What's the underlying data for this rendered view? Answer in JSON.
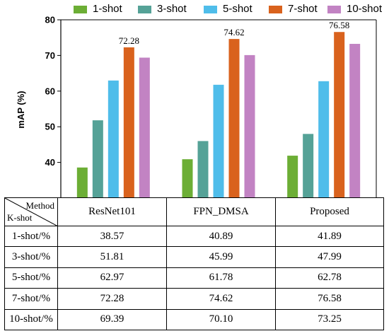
{
  "legend": [
    {
      "name": "1-shot",
      "color": "#6cae35"
    },
    {
      "name": "3-shot",
      "color": "#55a297"
    },
    {
      "name": "5-shot",
      "color": "#4fbdea"
    },
    {
      "name": "7-shot",
      "color": "#d9621d"
    },
    {
      "name": "10-shot",
      "color": "#c283c3"
    }
  ],
  "chart_data": {
    "type": "bar",
    "ylabel": "mAP (%)",
    "ylim": [
      30,
      80
    ],
    "yticks": [
      40,
      50,
      60,
      70,
      80
    ],
    "categories": [
      "ResNet101",
      "FPN_DMSA",
      "Proposed"
    ],
    "series": [
      {
        "name": "1-shot",
        "color": "#6cae35",
        "values": [
          38.57,
          40.89,
          41.89
        ]
      },
      {
        "name": "3-shot",
        "color": "#55a297",
        "values": [
          51.81,
          45.99,
          47.99
        ]
      },
      {
        "name": "5-shot",
        "color": "#4fbdea",
        "values": [
          62.97,
          61.78,
          62.78
        ]
      },
      {
        "name": "7-shot",
        "color": "#d9621d",
        "values": [
          72.28,
          74.62,
          76.58
        ]
      },
      {
        "name": "10-shot",
        "color": "#c283c3",
        "values": [
          69.39,
          70.1,
          73.25
        ]
      }
    ],
    "annotations": [
      {
        "category": "ResNet101",
        "series": "7-shot",
        "text": "72.28"
      },
      {
        "category": "FPN_DMSA",
        "series": "7-shot",
        "text": "74.62"
      },
      {
        "category": "Proposed",
        "series": "7-shot",
        "text": "76.58"
      }
    ]
  },
  "table": {
    "header_method": "Method",
    "header_kshot": "K-shot",
    "columns": [
      "ResNet101",
      "FPN_DMSA",
      "Proposed"
    ],
    "rows": [
      {
        "label": "1-shot/%",
        "values": [
          "38.57",
          "40.89",
          "41.89"
        ]
      },
      {
        "label": "3-shot/%",
        "values": [
          "51.81",
          "45.99",
          "47.99"
        ]
      },
      {
        "label": "5-shot/%",
        "values": [
          "62.97",
          "61.78",
          "62.78"
        ]
      },
      {
        "label": "7-shot/%",
        "values": [
          "72.28",
          "74.62",
          "76.58"
        ]
      },
      {
        "label": "10-shot/%",
        "values": [
          "69.39",
          "70.10",
          "73.25"
        ]
      }
    ]
  }
}
